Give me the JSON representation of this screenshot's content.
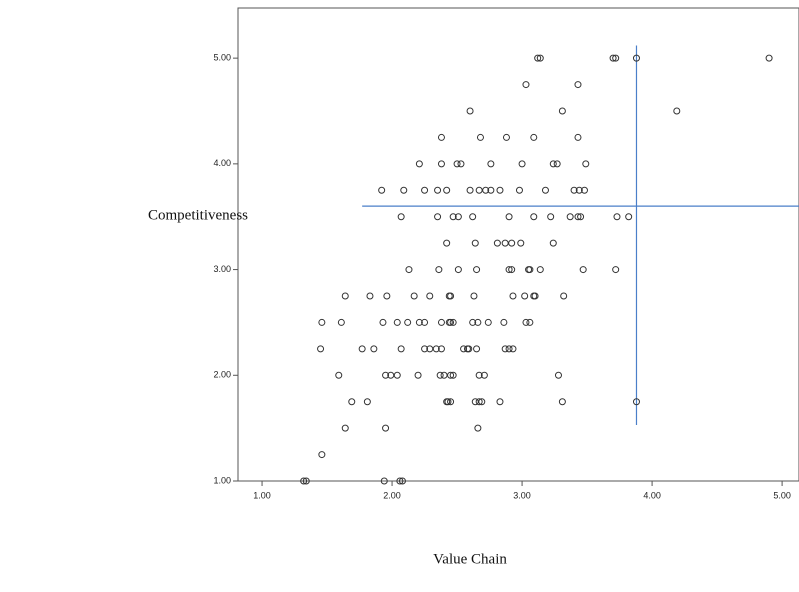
{
  "chart_data": {
    "type": "scatter",
    "x_label": "Value Chain",
    "y_label": "Competitiveness",
    "xlim": [
      0.815,
      5.13
    ],
    "ylim": [
      1,
      5.55
    ],
    "xticks": [
      {
        "value": 1,
        "label": "1.00"
      },
      {
        "value": 2,
        "label": "2.00"
      },
      {
        "value": 3,
        "label": "3.00"
      },
      {
        "value": 4,
        "label": "4.00"
      },
      {
        "value": 5,
        "label": "5.00"
      }
    ],
    "yticks": [
      {
        "value": 1,
        "label": "1.00"
      },
      {
        "value": 2,
        "label": "2.00"
      },
      {
        "value": 3,
        "label": "3.00"
      },
      {
        "value": 4,
        "label": "4.00"
      },
      {
        "value": 5,
        "label": "5.00"
      }
    ],
    "color": "#333333",
    "reference_color": "#4a7fc9",
    "vline": {
      "x": 3.88,
      "y_range": [
        1.53,
        5.12
      ]
    },
    "hline": {
      "y": 3.6,
      "x_range": [
        1.77,
        5.13
      ]
    },
    "x": [
      3.12,
      3.14,
      3.7,
      3.72,
      3.88,
      4.9,
      3.03,
      3.43,
      2.6,
      3.31,
      4.19,
      2.38,
      2.68,
      2.88,
      3.09,
      3.43,
      2.21,
      2.38,
      2.5,
      2.53,
      2.76,
      3.0,
      3.24,
      3.27,
      3.49,
      1.92,
      2.09,
      2.25,
      2.35,
      2.42,
      2.6,
      2.67,
      2.72,
      2.76,
      2.83,
      2.98,
      3.18,
      3.4,
      3.44,
      3.48,
      2.07,
      2.35,
      2.47,
      2.51,
      2.62,
      2.9,
      3.09,
      3.22,
      3.37,
      3.43,
      3.45,
      3.73,
      3.82,
      2.42,
      2.64,
      2.81,
      2.87,
      2.92,
      2.99,
      3.24,
      2.13,
      2.36,
      2.51,
      2.65,
      2.9,
      2.92,
      3.05,
      3.06,
      3.14,
      3.47,
      3.72,
      1.64,
      1.83,
      1.96,
      2.17,
      2.29,
      2.44,
      2.45,
      2.63,
      2.93,
      3.02,
      3.09,
      3.1,
      3.32,
      1.46,
      1.61,
      1.93,
      2.04,
      2.12,
      2.21,
      2.25,
      2.38,
      2.44,
      2.45,
      2.47,
      2.62,
      2.66,
      2.74,
      2.86,
      3.03,
      3.06,
      1.45,
      1.77,
      1.86,
      2.07,
      2.25,
      2.29,
      2.34,
      2.38,
      2.55,
      2.58,
      2.59,
      2.65,
      2.87,
      2.9,
      2.93,
      1.59,
      1.95,
      1.99,
      2.04,
      2.2,
      2.37,
      2.4,
      2.45,
      2.47,
      2.67,
      2.71,
      3.28,
      1.69,
      1.81,
      2.42,
      2.43,
      2.45,
      2.64,
      2.67,
      2.69,
      2.83,
      3.31,
      3.88,
      1.64,
      1.95,
      2.66,
      1.46,
      1.32,
      1.34,
      1.94,
      2.06,
      2.08
    ],
    "values": [
      5,
      5,
      5,
      5,
      5,
      5,
      4.75,
      4.75,
      4.5,
      4.5,
      4.5,
      4.25,
      4.25,
      4.25,
      4.25,
      4.25,
      4,
      4,
      4,
      4,
      4,
      4,
      4,
      4,
      4,
      3.75,
      3.75,
      3.75,
      3.75,
      3.75,
      3.75,
      3.75,
      3.75,
      3.75,
      3.75,
      3.75,
      3.75,
      3.75,
      3.75,
      3.75,
      3.5,
      3.5,
      3.5,
      3.5,
      3.5,
      3.5,
      3.5,
      3.5,
      3.5,
      3.5,
      3.5,
      3.5,
      3.5,
      3.25,
      3.25,
      3.25,
      3.25,
      3.25,
      3.25,
      3.25,
      3,
      3,
      3,
      3,
      3,
      3,
      3,
      3,
      3,
      3,
      3,
      2.75,
      2.75,
      2.75,
      2.75,
      2.75,
      2.75,
      2.75,
      2.75,
      2.75,
      2.75,
      2.75,
      2.75,
      2.75,
      2.5,
      2.5,
      2.5,
      2.5,
      2.5,
      2.5,
      2.5,
      2.5,
      2.5,
      2.5,
      2.5,
      2.5,
      2.5,
      2.5,
      2.5,
      2.5,
      2.5,
      2.25,
      2.25,
      2.25,
      2.25,
      2.25,
      2.25,
      2.25,
      2.25,
      2.25,
      2.25,
      2.25,
      2.25,
      2.25,
      2.25,
      2.25,
      2,
      2,
      2,
      2,
      2,
      2,
      2,
      2,
      2,
      2,
      2,
      2,
      1.75,
      1.75,
      1.75,
      1.75,
      1.75,
      1.75,
      1.75,
      1.75,
      1.75,
      1.75,
      1.75,
      1.5,
      1.5,
      1.5,
      1.25,
      1,
      1,
      1,
      1,
      1
    ]
  }
}
